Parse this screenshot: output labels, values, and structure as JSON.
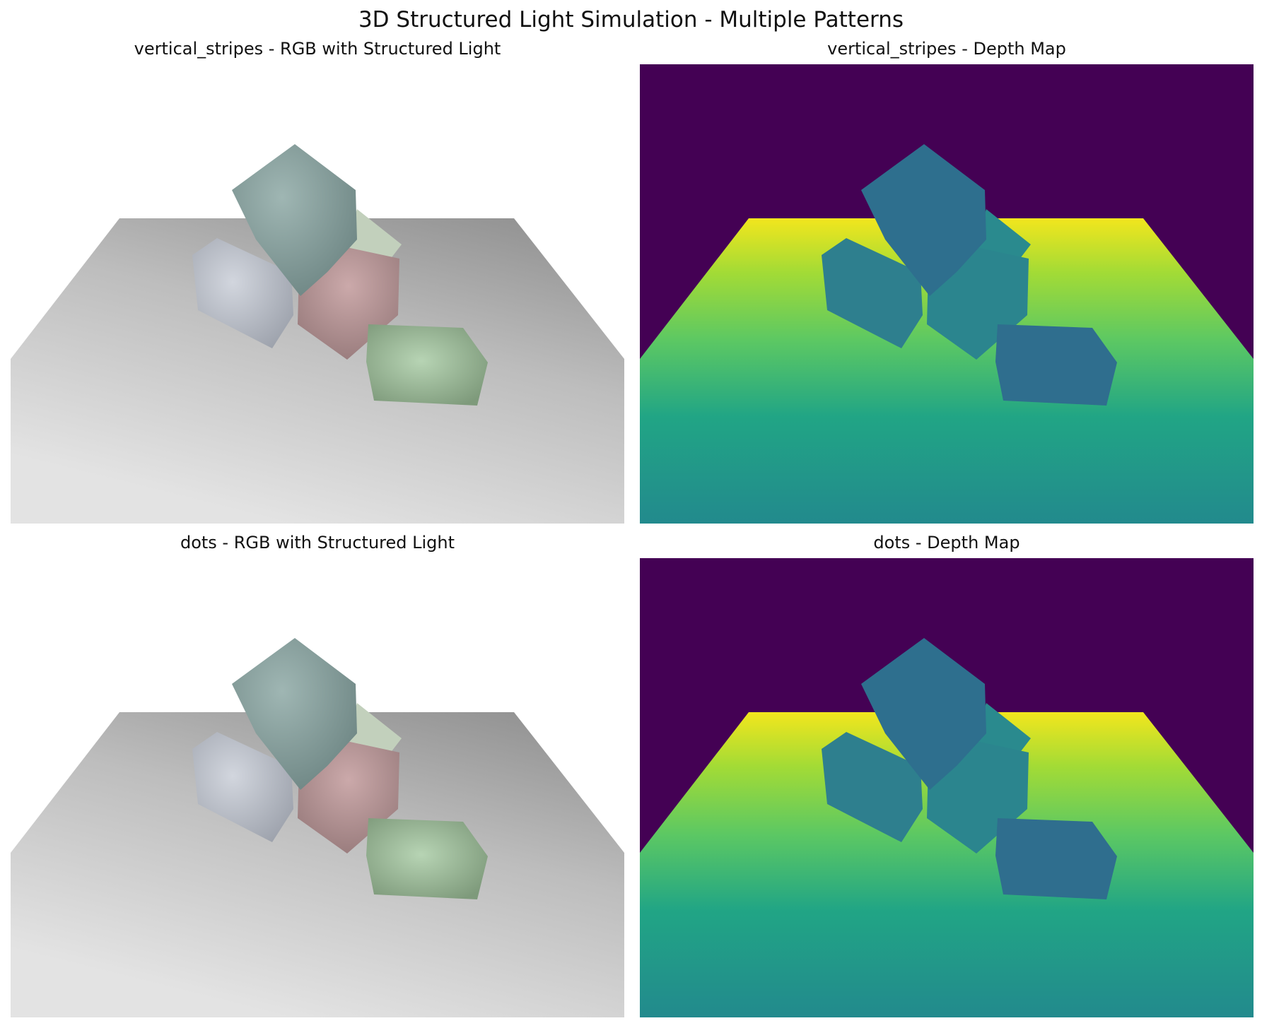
{
  "figure": {
    "title": "3D Structured Light Simulation - Multiple Patterns"
  },
  "panels": [
    {
      "title": "vertical_stripes - RGB with Structured Light",
      "view": "rgb"
    },
    {
      "title": "vertical_stripes - Depth Map",
      "view": "depth"
    },
    {
      "title": "dots - RGB with Structured Light",
      "view": "rgb"
    },
    {
      "title": "dots - Depth Map",
      "view": "depth"
    }
  ],
  "colors": {
    "depth_background": "#440154",
    "depth_far": "#f2e61d",
    "depth_mid": "#5cc863",
    "depth_near": "#21a585",
    "depth_nearest": "#228c8d",
    "depth_boxes": "#2c7a8f",
    "rgb_floor_light": "#e2e2e2",
    "rgb_floor_dark": "#8c8c8c",
    "box_teal": "#8aa3a1",
    "box_silver": "#c3c8d2",
    "box_rose": "#c09d9f",
    "box_sage": "#c2d0bc",
    "box_green": "#a8c8a6"
  }
}
